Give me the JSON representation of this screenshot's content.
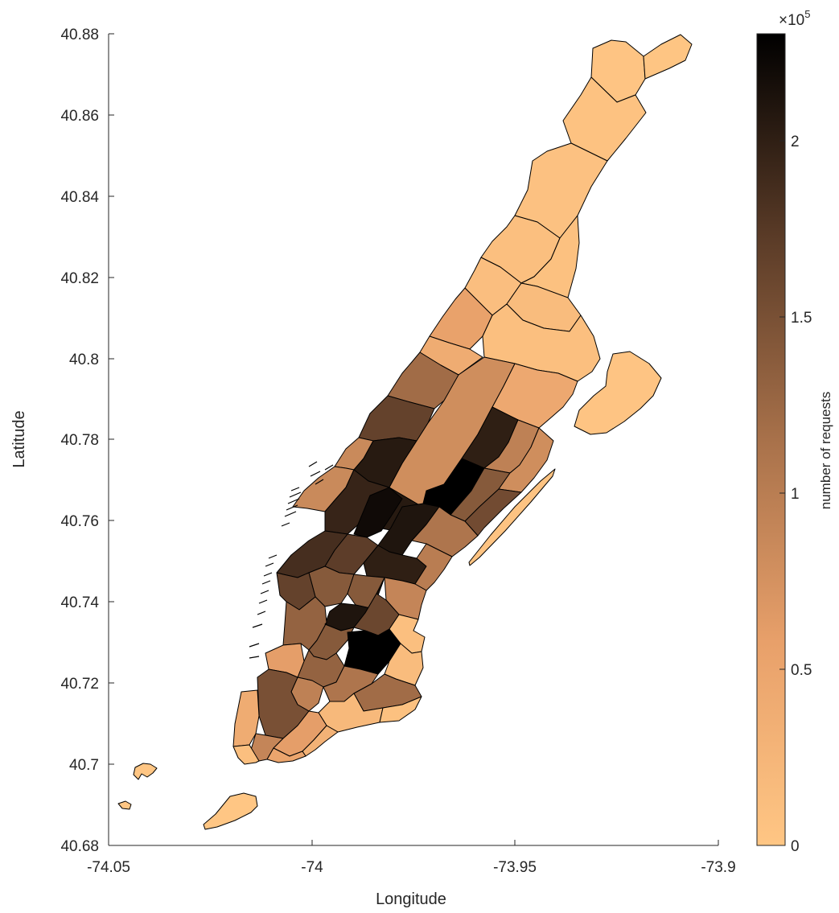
{
  "figure": {
    "xlabel": "Longitude",
    "ylabel": "Latitude",
    "x_ticks": [
      "-74.05",
      "-74",
      "-73.95",
      "-73.9"
    ],
    "y_ticks": [
      "40.88",
      "40.86",
      "40.84",
      "40.82",
      "40.8",
      "40.78",
      "40.76",
      "40.74",
      "40.72",
      "40.7",
      "40.68"
    ],
    "colorbar": {
      "label": "number of requests",
      "multiplier_base": "×10",
      "multiplier_exp": "5",
      "ticks": [
        "0",
        "0.5",
        "1",
        "1.5",
        "2"
      ],
      "colormap": "copper-reversed",
      "color_low": "#FFC684",
      "color_high": "#000000"
    }
  },
  "chart_data": {
    "type": "choropleth",
    "region": "Manhattan taxi zones",
    "x_range": [
      -74.05,
      -73.9
    ],
    "y_range": [
      40.68,
      40.88
    ],
    "value_range": [
      0,
      230000
    ],
    "zones": [
      {
        "id": "inwood-north",
        "value": 3000
      },
      {
        "id": "inwood-hill",
        "value": 2000
      },
      {
        "id": "marble-hill",
        "value": 1500
      },
      {
        "id": "washington-heights-north",
        "value": 6000
      },
      {
        "id": "washington-heights-south",
        "value": 7000
      },
      {
        "id": "hamilton-heights",
        "value": 10000
      },
      {
        "id": "manhattanville",
        "value": 12000
      },
      {
        "id": "morningside-heights",
        "value": 55000
      },
      {
        "id": "central-harlem-north",
        "value": 8000
      },
      {
        "id": "central-harlem",
        "value": 15000
      },
      {
        "id": "east-harlem-north",
        "value": 10000
      },
      {
        "id": "east-harlem-south",
        "value": 45000
      },
      {
        "id": "randalls-island",
        "value": 3000
      },
      {
        "id": "roosevelt-island",
        "value": 5000
      },
      {
        "id": "manhattan-valley",
        "value": 40000
      },
      {
        "id": "upper-west-side-north",
        "value": 120000
      },
      {
        "id": "upper-west-side-south",
        "value": 165000
      },
      {
        "id": "lincoln-square-west",
        "value": 85000
      },
      {
        "id": "lincoln-square-east",
        "value": 205000
      },
      {
        "id": "central-park",
        "value": 80000
      },
      {
        "id": "upper-east-side-north",
        "value": 200000
      },
      {
        "id": "upper-east-side-south",
        "value": 230000
      },
      {
        "id": "yorkville-west",
        "value": 140000
      },
      {
        "id": "yorkville-east",
        "value": 95000
      },
      {
        "id": "lenox-hill-west",
        "value": 155000
      },
      {
        "id": "lenox-hill-east",
        "value": 80000
      },
      {
        "id": "clinton-west",
        "value": 85000
      },
      {
        "id": "clinton-east",
        "value": 195000
      },
      {
        "id": "midtown-north",
        "value": 205000
      },
      {
        "id": "midtown-center",
        "value": 220000
      },
      {
        "id": "midtown-east",
        "value": 210000
      },
      {
        "id": "sutton-place",
        "value": 110000
      },
      {
        "id": "times-square",
        "value": 170000
      },
      {
        "id": "garment-district",
        "value": 185000
      },
      {
        "id": "murray-hill",
        "value": 200000
      },
      {
        "id": "turtle-bay",
        "value": 100000
      },
      {
        "id": "chelsea-north",
        "value": 165000
      },
      {
        "id": "flatiron",
        "value": 140000
      },
      {
        "id": "penn-station",
        "value": 140000
      },
      {
        "id": "gramercy",
        "value": 210000
      },
      {
        "id": "kips-bay",
        "value": 90000
      },
      {
        "id": "union-square",
        "value": 160000
      },
      {
        "id": "stuy-town",
        "value": 10000
      },
      {
        "id": "east-village",
        "value": 230000
      },
      {
        "id": "west-chelsea",
        "value": 130000
      },
      {
        "id": "west-village",
        "value": 140000
      },
      {
        "id": "greenwich-village",
        "value": 130000
      },
      {
        "id": "soho",
        "value": 95000
      },
      {
        "id": "hudson-sq",
        "value": 60000
      },
      {
        "id": "little-italy",
        "value": 110000
      },
      {
        "id": "lower-east-side",
        "value": 120000
      },
      {
        "id": "alphabet-city",
        "value": 15000
      },
      {
        "id": "tribeca",
        "value": 150000
      },
      {
        "id": "chinatown",
        "value": 20000
      },
      {
        "id": "two-bridges",
        "value": 8000
      },
      {
        "id": "battery-park-city",
        "value": 40000
      },
      {
        "id": "world-trade-center",
        "value": 90000
      },
      {
        "id": "financial-district-north",
        "value": 60000
      },
      {
        "id": "financial-district-south",
        "value": 50000
      },
      {
        "id": "seaport",
        "value": 30000
      },
      {
        "id": "battery-park",
        "value": 10000
      },
      {
        "id": "governors-island",
        "value": 500
      },
      {
        "id": "ellis-island",
        "value": 300
      },
      {
        "id": "liberty-island",
        "value": 300
      }
    ]
  }
}
